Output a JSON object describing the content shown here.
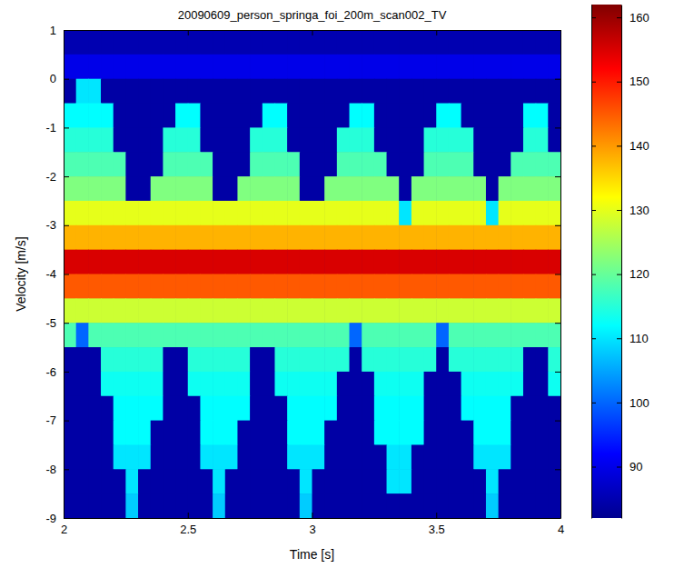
{
  "chart_data": {
    "type": "heatmap",
    "title": "20090609_person_springa_foi_200m_scan002_TV",
    "x_label": "Time [s]",
    "y_label": "Velocity [m/s]",
    "xlim": [
      2,
      4
    ],
    "xticks": [
      2,
      2.5,
      3,
      3.5,
      4
    ],
    "ylim": [
      -9,
      1
    ],
    "yticks": [
      -9,
      -8,
      -7,
      -6,
      -5,
      -4,
      -3,
      -2,
      -1,
      0,
      1
    ],
    "grid": false,
    "x": [
      2.025,
      2.075,
      2.125,
      2.175,
      2.225,
      2.275,
      2.325,
      2.375,
      2.425,
      2.475,
      2.525,
      2.575,
      2.625,
      2.675,
      2.725,
      2.775,
      2.825,
      2.875,
      2.925,
      2.975,
      3.025,
      3.075,
      3.125,
      3.175,
      3.225,
      3.275,
      3.325,
      3.375,
      3.425,
      3.475,
      3.525,
      3.575,
      3.625,
      3.675,
      3.725,
      3.775,
      3.825,
      3.875,
      3.925,
      3.975
    ],
    "y": [
      0.75,
      0.25,
      -0.25,
      -0.75,
      -1.25,
      -1.75,
      -2.25,
      -2.75,
      -3.25,
      -3.75,
      -4.25,
      -4.75,
      -5.25,
      -5.75,
      -6.25,
      -6.75,
      -7.25,
      -7.75,
      -8.25,
      -8.75
    ],
    "cells": [
      [
        85,
        85,
        85,
        85,
        85,
        85,
        85,
        85,
        85,
        85,
        85,
        85,
        85,
        85,
        85,
        85,
        85,
        85,
        85,
        85,
        85,
        85,
        85,
        85,
        85,
        85,
        85,
        85,
        85,
        85,
        85,
        85,
        85,
        85,
        85,
        85,
        85,
        85,
        85,
        85
      ],
      [
        90,
        90,
        90,
        90,
        90,
        90,
        90,
        90,
        90,
        90,
        90,
        90,
        90,
        90,
        90,
        90,
        90,
        90,
        90,
        90,
        90,
        90,
        90,
        90,
        90,
        90,
        90,
        90,
        90,
        90,
        90,
        90,
        90,
        90,
        90,
        90,
        90,
        90,
        90,
        90
      ],
      [
        84,
        110,
        110,
        84,
        84,
        84,
        84,
        84,
        84,
        84,
        84,
        84,
        84,
        84,
        84,
        84,
        84,
        84,
        84,
        84,
        84,
        84,
        84,
        84,
        84,
        84,
        84,
        84,
        84,
        84,
        84,
        84,
        84,
        84,
        84,
        84,
        84,
        84,
        84,
        84
      ],
      [
        112,
        112,
        112,
        112,
        84,
        84,
        84,
        84,
        84,
        112,
        112,
        84,
        84,
        84,
        84,
        84,
        112,
        112,
        84,
        84,
        84,
        84,
        84,
        112,
        112,
        84,
        84,
        84,
        84,
        84,
        112,
        112,
        84,
        84,
        84,
        84,
        84,
        112,
        112,
        84
      ],
      [
        115,
        115,
        115,
        115,
        84,
        84,
        84,
        84,
        115,
        115,
        115,
        84,
        84,
        84,
        84,
        115,
        115,
        115,
        84,
        84,
        84,
        84,
        115,
        115,
        115,
        84,
        84,
        84,
        84,
        115,
        115,
        115,
        115,
        84,
        84,
        84,
        84,
        115,
        115,
        84
      ],
      [
        118,
        118,
        118,
        118,
        118,
        84,
        84,
        84,
        118,
        118,
        118,
        118,
        84,
        84,
        84,
        118,
        118,
        118,
        118,
        84,
        84,
        84,
        118,
        118,
        118,
        118,
        84,
        84,
        84,
        118,
        118,
        118,
        118,
        84,
        84,
        84,
        118,
        118,
        118,
        118
      ],
      [
        122,
        122,
        122,
        122,
        122,
        84,
        84,
        122,
        122,
        122,
        122,
        122,
        84,
        84,
        122,
        122,
        122,
        122,
        122,
        84,
        84,
        122,
        122,
        122,
        122,
        122,
        122,
        84,
        122,
        122,
        122,
        122,
        122,
        122,
        84,
        122,
        122,
        122,
        122,
        122
      ],
      [
        130,
        130,
        130,
        130,
        130,
        130,
        130,
        130,
        130,
        130,
        130,
        130,
        130,
        130,
        130,
        130,
        130,
        130,
        130,
        130,
        130,
        130,
        130,
        130,
        130,
        130,
        130,
        110,
        130,
        130,
        130,
        130,
        130,
        130,
        110,
        130,
        130,
        130,
        130,
        130
      ],
      [
        138,
        138,
        138,
        138,
        138,
        138,
        138,
        138,
        138,
        138,
        138,
        138,
        138,
        138,
        138,
        138,
        138,
        138,
        138,
        138,
        138,
        138,
        138,
        138,
        138,
        138,
        138,
        138,
        138,
        138,
        138,
        138,
        138,
        138,
        138,
        138,
        138,
        138,
        138,
        138
      ],
      [
        155,
        155,
        155,
        155,
        155,
        155,
        155,
        155,
        155,
        155,
        155,
        155,
        155,
        155,
        155,
        155,
        155,
        155,
        155,
        155,
        155,
        155,
        155,
        155,
        155,
        155,
        155,
        155,
        155,
        155,
        155,
        155,
        155,
        155,
        155,
        155,
        155,
        155,
        155,
        155
      ],
      [
        145,
        145,
        145,
        145,
        145,
        145,
        145,
        145,
        145,
        145,
        145,
        145,
        145,
        145,
        145,
        145,
        145,
        145,
        145,
        145,
        145,
        145,
        145,
        145,
        145,
        145,
        145,
        145,
        145,
        145,
        145,
        145,
        145,
        145,
        145,
        145,
        145,
        145,
        145,
        145
      ],
      [
        128,
        128,
        128,
        128,
        128,
        128,
        128,
        128,
        128,
        128,
        128,
        128,
        128,
        128,
        128,
        128,
        128,
        128,
        128,
        128,
        128,
        128,
        128,
        128,
        128,
        128,
        128,
        128,
        128,
        128,
        128,
        128,
        128,
        128,
        128,
        128,
        128,
        128,
        128,
        128
      ],
      [
        118,
        100,
        118,
        118,
        118,
        118,
        118,
        118,
        118,
        118,
        118,
        118,
        118,
        118,
        118,
        118,
        118,
        118,
        118,
        118,
        118,
        118,
        118,
        100,
        118,
        118,
        118,
        118,
        118,
        118,
        100,
        118,
        118,
        118,
        118,
        118,
        118,
        118,
        118,
        118
      ],
      [
        84,
        84,
        84,
        115,
        115,
        115,
        115,
        115,
        84,
        84,
        115,
        115,
        115,
        115,
        115,
        84,
        84,
        115,
        115,
        115,
        115,
        115,
        115,
        84,
        115,
        115,
        115,
        115,
        115,
        115,
        84,
        115,
        115,
        115,
        115,
        115,
        115,
        84,
        84,
        115
      ],
      [
        84,
        84,
        84,
        113,
        113,
        113,
        113,
        113,
        84,
        84,
        113,
        113,
        113,
        113,
        113,
        84,
        84,
        113,
        113,
        113,
        113,
        113,
        84,
        84,
        84,
        113,
        113,
        113,
        113,
        84,
        84,
        84,
        113,
        113,
        113,
        113,
        113,
        84,
        84,
        113
      ],
      [
        84,
        84,
        84,
        84,
        112,
        112,
        112,
        112,
        84,
        84,
        84,
        112,
        112,
        112,
        112,
        84,
        84,
        84,
        112,
        112,
        112,
        112,
        84,
        84,
        84,
        112,
        112,
        112,
        112,
        84,
        84,
        84,
        112,
        112,
        112,
        112,
        84,
        84,
        84,
        84
      ],
      [
        84,
        84,
        84,
        84,
        112,
        112,
        112,
        84,
        84,
        84,
        84,
        112,
        112,
        112,
        84,
        84,
        84,
        84,
        112,
        112,
        112,
        84,
        84,
        84,
        84,
        112,
        112,
        112,
        112,
        84,
        84,
        84,
        84,
        112,
        112,
        112,
        84,
        84,
        84,
        84
      ],
      [
        84,
        84,
        84,
        84,
        110,
        110,
        110,
        84,
        84,
        84,
        84,
        110,
        110,
        110,
        84,
        84,
        84,
        84,
        110,
        110,
        110,
        84,
        84,
        84,
        84,
        84,
        110,
        110,
        84,
        84,
        84,
        84,
        84,
        110,
        110,
        110,
        84,
        84,
        84,
        84
      ],
      [
        84,
        84,
        84,
        84,
        84,
        110,
        84,
        84,
        84,
        84,
        84,
        84,
        110,
        84,
        84,
        84,
        84,
        84,
        84,
        110,
        84,
        84,
        84,
        84,
        84,
        84,
        110,
        110,
        84,
        84,
        84,
        84,
        84,
        84,
        110,
        84,
        84,
        84,
        84,
        84
      ],
      [
        84,
        84,
        84,
        84,
        84,
        108,
        84,
        84,
        84,
        84,
        84,
        84,
        108,
        84,
        84,
        84,
        84,
        84,
        84,
        108,
        84,
        84,
        84,
        84,
        84,
        84,
        84,
        84,
        84,
        84,
        84,
        84,
        84,
        84,
        108,
        84,
        84,
        84,
        84,
        84
      ]
    ],
    "colorbar": {
      "range": [
        82,
        162
      ],
      "ticks": [
        90,
        100,
        110,
        120,
        130,
        140,
        150,
        160
      ]
    }
  }
}
